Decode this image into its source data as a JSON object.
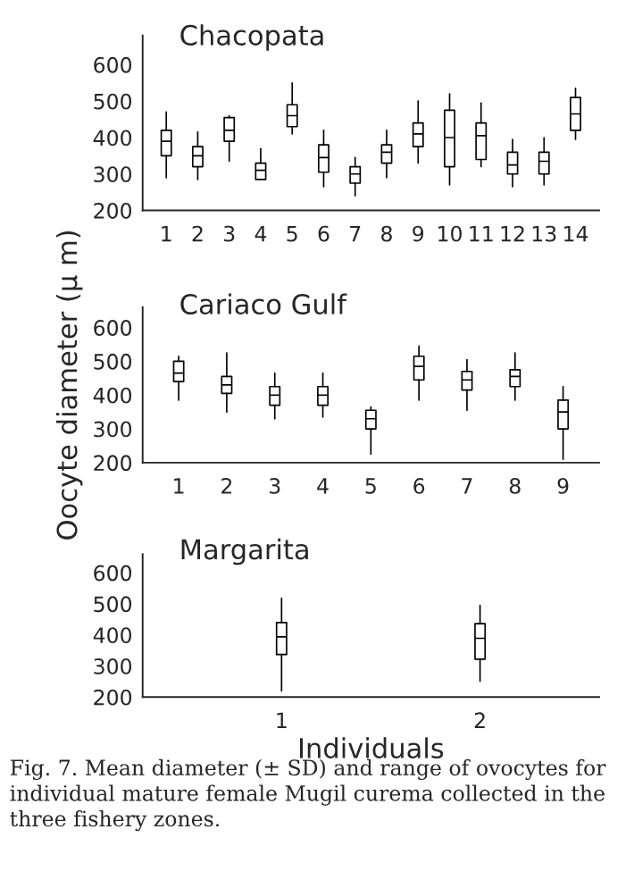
{
  "chart_data": [
    {
      "type": "box",
      "title": "Chacopata",
      "categories": [
        "1",
        "2",
        "3",
        "4",
        "5",
        "6",
        "7",
        "8",
        "9",
        "10",
        "11",
        "12",
        "13",
        "14"
      ],
      "ylim": [
        200,
        680
      ],
      "yticks": [
        200,
        300,
        400,
        500,
        600
      ],
      "boxes": [
        {
          "low": 290,
          "q1": 350,
          "median": 390,
          "q3": 420,
          "high": 470
        },
        {
          "low": 285,
          "q1": 320,
          "median": 350,
          "q3": 375,
          "high": 415
        },
        {
          "low": 335,
          "q1": 390,
          "median": 420,
          "q3": 455,
          "high": 460
        },
        {
          "low": 285,
          "q1": 285,
          "median": 310,
          "q3": 330,
          "high": 370
        },
        {
          "low": 410,
          "q1": 430,
          "median": 460,
          "q3": 490,
          "high": 550
        },
        {
          "low": 265,
          "q1": 305,
          "median": 345,
          "q3": 380,
          "high": 420
        },
        {
          "low": 240,
          "q1": 275,
          "median": 300,
          "q3": 320,
          "high": 345
        },
        {
          "low": 290,
          "q1": 330,
          "median": 360,
          "q3": 380,
          "high": 420
        },
        {
          "low": 330,
          "q1": 375,
          "median": 410,
          "q3": 440,
          "high": 500
        },
        {
          "low": 270,
          "q1": 320,
          "median": 400,
          "q3": 475,
          "high": 520
        },
        {
          "low": 320,
          "q1": 340,
          "median": 405,
          "q3": 440,
          "high": 495
        },
        {
          "low": 265,
          "q1": 300,
          "median": 325,
          "q3": 360,
          "high": 395
        },
        {
          "low": 270,
          "q1": 300,
          "median": 335,
          "q3": 360,
          "high": 400
        },
        {
          "low": 395,
          "q1": 420,
          "median": 465,
          "q3": 510,
          "high": 535
        }
      ]
    },
    {
      "type": "box",
      "title": "Cariaco Gulf",
      "ylabel": "Oocyte diameter (µ m)",
      "categories": [
        "1",
        "2",
        "3",
        "4",
        "5",
        "6",
        "7",
        "8",
        "9"
      ],
      "ylim": [
        200,
        660
      ],
      "yticks": [
        200,
        300,
        400,
        500,
        600
      ],
      "boxes": [
        {
          "low": 385,
          "q1": 440,
          "median": 465,
          "q3": 500,
          "high": 515
        },
        {
          "low": 350,
          "q1": 405,
          "median": 430,
          "q3": 455,
          "high": 525
        },
        {
          "low": 330,
          "q1": 370,
          "median": 400,
          "q3": 425,
          "high": 465
        },
        {
          "low": 335,
          "q1": 370,
          "median": 400,
          "q3": 425,
          "high": 465
        },
        {
          "low": 225,
          "q1": 300,
          "median": 330,
          "q3": 355,
          "high": 365
        },
        {
          "low": 385,
          "q1": 445,
          "median": 485,
          "q3": 515,
          "high": 545
        },
        {
          "low": 355,
          "q1": 415,
          "median": 445,
          "q3": 470,
          "high": 505
        },
        {
          "low": 385,
          "q1": 425,
          "median": 455,
          "q3": 475,
          "high": 525
        },
        {
          "low": 210,
          "q1": 300,
          "median": 350,
          "q3": 385,
          "high": 425
        }
      ]
    },
    {
      "type": "box",
      "title": "Margarita",
      "xlabel": "Individuals",
      "categories": [
        "1",
        "2"
      ],
      "ylim": [
        200,
        660
      ],
      "yticks": [
        200,
        300,
        400,
        500,
        600
      ],
      "boxes": [
        {
          "low": 220,
          "q1": 337,
          "median": 394,
          "q3": 440,
          "high": 518
        },
        {
          "low": 251,
          "q1": 322,
          "median": 389,
          "q3": 436,
          "high": 495
        }
      ],
      "annotations": [
        "Fig. 7. Mean diameter (± SD) and range of ovocytes for individual mature female Mugil curema collected in the three fishery zones."
      ]
    }
  ]
}
